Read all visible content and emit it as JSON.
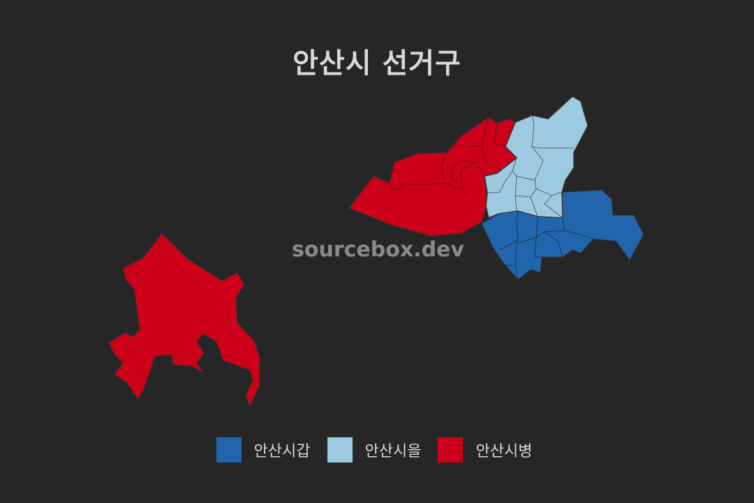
{
  "title": "안산시 선거구",
  "watermark": "sourcebox.dev",
  "colors": {
    "background": "#262626",
    "gap": "#2166ac",
    "eul": "#9ecae1",
    "byeong": "#cc0018",
    "border": "#333333"
  },
  "legend": [
    {
      "label": "안산시갑",
      "color": "#2166ac"
    },
    {
      "label": "안산시을",
      "color": "#9ecae1"
    },
    {
      "label": "안산시병",
      "color": "#cc0018"
    }
  ]
}
